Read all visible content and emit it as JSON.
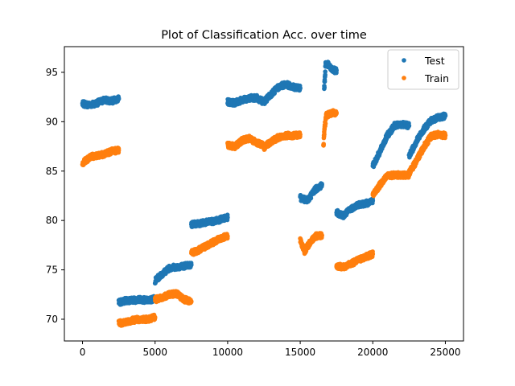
{
  "chart_data": {
    "type": "scatter",
    "title": "Plot of Classification Acc. over time",
    "xlabel": "",
    "ylabel": "",
    "xlim": [
      -1250,
      26250
    ],
    "ylim": [
      67.8,
      97.6
    ],
    "xticks": [
      0,
      5000,
      10000,
      15000,
      20000,
      25000
    ],
    "xtick_labels": [
      "0",
      "5000",
      "10000",
      "15000",
      "20000",
      "25000"
    ],
    "yticks": [
      70,
      75,
      80,
      85,
      90,
      95
    ],
    "ytick_labels": [
      "70",
      "75",
      "80",
      "85",
      "90",
      "95"
    ],
    "grid": false,
    "legend_position": "top-right",
    "series": [
      {
        "name": "Test",
        "color": "#1f77b4",
        "segments": [
          {
            "x": [
              0,
              500,
              1000,
              1500,
              2000,
              2500
            ],
            "y": [
              91.8,
              91.7,
              91.9,
              92.2,
              92.1,
              92.3
            ]
          },
          {
            "x": [
              2500,
              3000,
              3500,
              4000,
              4500,
              5000
            ],
            "y": [
              71.7,
              71.9,
              71.9,
              72.0,
              71.9,
              72.1
            ]
          },
          {
            "x": [
              5000,
              5500,
              6000,
              6500,
              7000,
              7500
            ],
            "y": [
              73.9,
              74.6,
              75.2,
              75.3,
              75.4,
              75.5
            ]
          },
          {
            "x": [
              7500,
              8000,
              8500,
              9000,
              9500,
              10000
            ],
            "y": [
              79.6,
              79.7,
              79.8,
              79.9,
              80.1,
              80.3
            ]
          },
          {
            "x": [
              10000,
              10500,
              11000,
              11500,
              12000,
              12500
            ],
            "y": [
              92.0,
              91.9,
              92.2,
              92.4,
              92.4,
              92.0
            ]
          },
          {
            "x": [
              12500,
              13000,
              13500,
              14000,
              14500,
              15000
            ],
            "y": [
              92.0,
              92.8,
              93.5,
              93.8,
              93.5,
              93.4
            ]
          },
          {
            "x": [
              15000,
              15500,
              16000,
              16500
            ],
            "y": [
              82.3,
              82.0,
              83.1,
              83.6
            ]
          },
          {
            "x": [
              16650,
              16700,
              16750,
              16900,
              17100,
              17300,
              17500
            ],
            "y": [
              93.2,
              94.5,
              95.9,
              95.8,
              95.4,
              95.2,
              95.2
            ]
          },
          {
            "x": [
              17500,
              18000,
              18500,
              19000,
              19500,
              20000
            ],
            "y": [
              80.8,
              80.5,
              81.2,
              81.6,
              81.7,
              82.0
            ]
          },
          {
            "x": [
              20000,
              20500,
              21000,
              21500,
              22000,
              22500
            ],
            "y": [
              85.5,
              87.0,
              88.6,
              89.6,
              89.7,
              89.6
            ]
          },
          {
            "x": [
              22500,
              23000,
              23500,
              24000,
              24500,
              25000
            ],
            "y": [
              86.5,
              88.0,
              89.2,
              90.1,
              90.4,
              90.6
            ]
          }
        ]
      },
      {
        "name": "Train",
        "color": "#ff7f0e",
        "segments": [
          {
            "x": [
              0,
              500,
              1000,
              1500,
              2000,
              2500
            ],
            "y": [
              85.8,
              86.4,
              86.6,
              86.7,
              87.0,
              87.1
            ]
          },
          {
            "x": [
              2500,
              3000,
              3500,
              4000,
              4500,
              5000
            ],
            "y": [
              69.6,
              69.7,
              69.9,
              70.0,
              70.0,
              70.2
            ]
          },
          {
            "x": [
              5000,
              5500,
              6000,
              6500,
              7000,
              7500
            ],
            "y": [
              72.0,
              72.2,
              72.5,
              72.6,
              72.0,
              71.8
            ]
          },
          {
            "x": [
              7500,
              8000,
              8500,
              9000,
              9500,
              10000
            ],
            "y": [
              76.7,
              77.0,
              77.4,
              77.8,
              78.2,
              78.4
            ]
          },
          {
            "x": [
              10000,
              10500,
              11000,
              11500,
              12000,
              12500
            ],
            "y": [
              87.6,
              87.5,
              88.1,
              88.3,
              87.9,
              87.6
            ]
          },
          {
            "x": [
              12500,
              13000,
              13500,
              14000,
              14500,
              15000
            ],
            "y": [
              87.4,
              88.0,
              88.4,
              88.6,
              88.6,
              88.7
            ]
          },
          {
            "x": [
              15000,
              15300,
              15600,
              16000,
              16500
            ],
            "y": [
              78.0,
              76.9,
              77.6,
              78.4,
              78.5
            ]
          },
          {
            "x": [
              16600,
              16650,
              16700,
              16800,
              17000,
              17300,
              17500
            ],
            "y": [
              87.6,
              88.8,
              89.6,
              90.6,
              90.8,
              90.9,
              90.9
            ]
          },
          {
            "x": [
              17500,
              18000,
              18500,
              19000,
              19500,
              20000
            ],
            "y": [
              75.4,
              75.3,
              75.6,
              76.0,
              76.3,
              76.6
            ]
          },
          {
            "x": [
              20000,
              20500,
              21000,
              21500,
              22000,
              22500
            ],
            "y": [
              82.6,
              83.6,
              84.5,
              84.6,
              84.6,
              84.6
            ]
          },
          {
            "x": [
              22500,
              23000,
              23500,
              24000,
              24500,
              25000
            ],
            "y": [
              84.8,
              86.0,
              87.4,
              88.5,
              88.7,
              88.6
            ]
          }
        ]
      }
    ]
  }
}
